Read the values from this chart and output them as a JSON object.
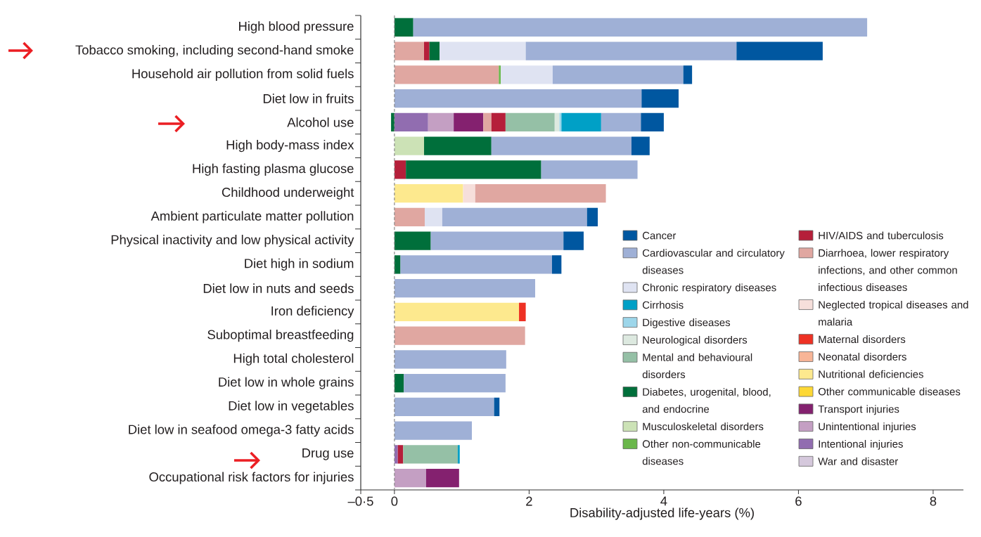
{
  "chart_data": {
    "type": "bar",
    "orientation": "horizontal",
    "stacked": true,
    "categories": [
      "High blood pressure",
      "Tobacco smoking, including second-hand smoke",
      "Household air pollution from solid fuels",
      "Diet low in fruits",
      "Alcohol use",
      "High body-mass index",
      "High fasting plasma glucose",
      "Childhood underweight",
      "Ambient particulate matter pollution",
      "Physical inactivity and low physical activity",
      "Diet high in sodium",
      "Diet low in nuts and seeds",
      "Iron deficiency",
      "Suboptimal breastfeeding",
      "High total cholesterol",
      "Diet low in whole grains",
      "Diet low in vegetables",
      "Diet low in seafood omega-3 fatty acids",
      "Drug use",
      "Occupational risk factors for injuries"
    ],
    "xlabel": "Disability-adjusted life-years (%)",
    "xlim": [
      -0.5,
      8.45
    ],
    "xticks": [
      {
        "value": -0.5,
        "label": "–0·5"
      },
      0,
      2,
      4,
      6,
      8
    ],
    "legend": "bottom right",
    "ref_lines": [
      {
        "axis": "x",
        "value": 0,
        "color": "#8a8a8a",
        "line_style": "dashed"
      }
    ],
    "series": [
      {
        "name": "War and disaster",
        "color": "#d5c8dc",
        "values": [
          null,
          null,
          null,
          null,
          null,
          null,
          null,
          null,
          null,
          null,
          null,
          null,
          null,
          null,
          null,
          null,
          null,
          null,
          null,
          null
        ]
      },
      {
        "name": "Intentional injuries",
        "color": "#916db0",
        "values": [
          null,
          null,
          null,
          null,
          0.5,
          null,
          null,
          null,
          null,
          null,
          null,
          null,
          null,
          null,
          null,
          null,
          null,
          null,
          0.05,
          null
        ]
      },
      {
        "name": "Unintentional injuries",
        "color": "#c49fc3",
        "values": [
          null,
          null,
          null,
          null,
          0.38,
          null,
          null,
          null,
          null,
          null,
          null,
          null,
          null,
          null,
          null,
          null,
          null,
          null,
          null,
          0.47
        ]
      },
      {
        "name": "Transport injuries",
        "color": "#84216f",
        "values": [
          null,
          null,
          null,
          null,
          0.44,
          null,
          null,
          null,
          null,
          null,
          null,
          null,
          null,
          null,
          null,
          null,
          null,
          null,
          null,
          0.49
        ]
      },
      {
        "name": "Other communicable diseases",
        "color": "#fdd835",
        "values": [
          null,
          null,
          null,
          null,
          null,
          null,
          null,
          null,
          null,
          null,
          null,
          null,
          null,
          null,
          null,
          null,
          null,
          null,
          null,
          null
        ]
      },
      {
        "name": "Nutritional deficiencies",
        "color": "#fde98e",
        "values": [
          null,
          null,
          null,
          null,
          null,
          null,
          null,
          1.02,
          null,
          null,
          null,
          null,
          1.85,
          null,
          null,
          null,
          null,
          null,
          null,
          null
        ]
      },
      {
        "name": "Neonatal disorders",
        "color": "#f8b597",
        "values": [
          null,
          null,
          null,
          null,
          null,
          null,
          null,
          null,
          null,
          null,
          null,
          null,
          null,
          null,
          null,
          null,
          null,
          null,
          null,
          null
        ]
      },
      {
        "name": "Maternal disorders",
        "color": "#ee3124",
        "values": [
          null,
          null,
          null,
          null,
          null,
          null,
          null,
          null,
          null,
          null,
          null,
          null,
          0.1,
          null,
          null,
          null,
          null,
          null,
          null,
          null
        ]
      },
      {
        "name": "Neglected tropical diseases and malaria",
        "color": "#f6dfdb",
        "values": [
          null,
          null,
          null,
          null,
          null,
          null,
          null,
          0.18,
          null,
          null,
          null,
          null,
          null,
          null,
          null,
          null,
          null,
          null,
          null,
          null
        ]
      },
      {
        "name": "Diarrhoea, lower respiratory infections, and other common infectious diseases",
        "color": "#e0a7a1",
        "values": [
          null,
          0.44,
          1.55,
          null,
          0.12,
          null,
          null,
          1.94,
          0.45,
          null,
          null,
          null,
          null,
          1.94,
          null,
          null,
          null,
          null,
          null,
          null
        ]
      },
      {
        "name": "HIV/AIDS and tuberculosis",
        "color": "#b51f3a",
        "values": [
          null,
          0.08,
          null,
          null,
          0.21,
          null,
          0.17,
          null,
          null,
          null,
          null,
          null,
          null,
          null,
          null,
          null,
          null,
          null,
          0.08,
          null
        ]
      },
      {
        "name": "Other non-communicable diseases",
        "color": "#6ab74b",
        "values": [
          null,
          null,
          0.03,
          null,
          null,
          null,
          null,
          null,
          null,
          null,
          null,
          null,
          null,
          null,
          null,
          null,
          null,
          null,
          null,
          null
        ]
      },
      {
        "name": "Musculoskeletal disorders",
        "color": "#cce2b6",
        "values": [
          null,
          null,
          null,
          null,
          null,
          0.44,
          null,
          null,
          null,
          null,
          null,
          null,
          null,
          null,
          null,
          null,
          null,
          null,
          null,
          null
        ]
      },
      {
        "name": "Diabetes, urogenital, blood, and endocrine",
        "color": "#006f3b",
        "values": [
          0.28,
          0.15,
          null,
          null,
          -0.05,
          1.0,
          2.01,
          null,
          null,
          0.54,
          0.09,
          null,
          null,
          null,
          null,
          0.14,
          null,
          null,
          null,
          null
        ]
      },
      {
        "name": "Mental and behavioural disorders",
        "color": "#95c0a6",
        "values": [
          null,
          null,
          null,
          null,
          0.73,
          null,
          null,
          null,
          null,
          null,
          null,
          null,
          null,
          null,
          null,
          null,
          null,
          null,
          0.81,
          null
        ]
      },
      {
        "name": "Neurological disorders",
        "color": "#dde9e0",
        "values": [
          null,
          null,
          null,
          null,
          0.07,
          null,
          null,
          null,
          null,
          null,
          null,
          null,
          null,
          null,
          null,
          null,
          null,
          null,
          null,
          null
        ]
      },
      {
        "name": "Digestive diseases",
        "color": "#9dd6ea",
        "values": [
          null,
          null,
          null,
          null,
          0.03,
          null,
          null,
          null,
          null,
          null,
          null,
          null,
          null,
          null,
          null,
          null,
          null,
          null,
          null,
          null
        ]
      },
      {
        "name": "Cirrhosis",
        "color": "#00a0c6",
        "values": [
          null,
          null,
          null,
          null,
          0.59,
          null,
          null,
          null,
          null,
          null,
          null,
          null,
          null,
          null,
          null,
          null,
          null,
          null,
          0.03,
          null
        ]
      },
      {
        "name": "Chronic respiratory diseases",
        "color": "#dfe3f2",
        "values": [
          null,
          1.28,
          0.77,
          null,
          null,
          null,
          null,
          null,
          0.26,
          null,
          null,
          null,
          null,
          null,
          null,
          null,
          null,
          null,
          null,
          null
        ]
      },
      {
        "name": "Cardiovascular and circulatory diseases",
        "color": "#9fb0d6",
        "values": [
          6.74,
          3.13,
          1.94,
          3.67,
          0.59,
          2.08,
          1.43,
          null,
          2.15,
          1.97,
          2.25,
          2.09,
          null,
          null,
          1.66,
          1.51,
          1.48,
          1.15,
          null,
          null
        ]
      },
      {
        "name": "Cancer",
        "color": "#0057a0",
        "values": [
          null,
          1.28,
          0.13,
          0.55,
          0.34,
          0.27,
          null,
          null,
          0.16,
          0.3,
          0.14,
          null,
          null,
          null,
          null,
          null,
          0.08,
          null,
          null,
          null
        ]
      }
    ]
  }
}
